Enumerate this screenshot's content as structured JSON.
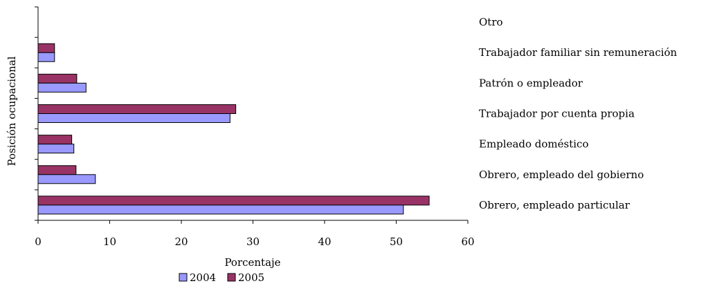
{
  "chart_data": {
    "type": "bar",
    "orientation": "horizontal",
    "categories": [
      "Otro",
      "Trabajador familiar sin remuneración",
      "Patrón o empleador",
      "Trabajador por cuenta propia",
      "Empleado doméstico",
      "Obrero, empleado del gobierno",
      "Obrero, empleado particular"
    ],
    "series": [
      {
        "name": "2004",
        "color": "#9999FF",
        "values": [
          0,
          2.3,
          6.7,
          26.8,
          5.0,
          8.0,
          51.0
        ]
      },
      {
        "name": "2005",
        "color": "#993366",
        "values": [
          0,
          2.3,
          5.4,
          27.6,
          4.7,
          5.3,
          54.6
        ]
      }
    ],
    "xlabel": "Porcentaje",
    "ylabel": "Posición ocupacional",
    "xlim": [
      0,
      60
    ],
    "xticks": [
      "0",
      "10",
      "20",
      "30",
      "40",
      "50",
      "60"
    ],
    "grid": false,
    "legend_position": "bottom"
  }
}
